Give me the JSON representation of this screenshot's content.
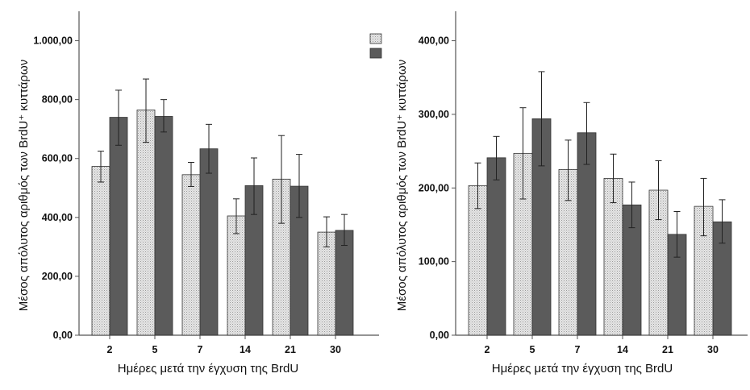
{
  "colors": {
    "series_light": "#e2e2e2",
    "series_dark": "#5b5b5b",
    "axis": "#555555",
    "error_bar": "#222222"
  },
  "legend": {
    "placement": "top-right",
    "entries": [
      {
        "swatch": "light-dotted"
      },
      {
        "swatch": "dark-solid"
      }
    ]
  },
  "chart_data": [
    {
      "type": "bar",
      "xlabel": "Ημέρες μετά την έγχυση της BrdU",
      "ylabel": "Μέσος απόλυτος αριθμός των BrdU⁺ κυττάρων",
      "categories": [
        "2",
        "5",
        "7",
        "14",
        "21",
        "30"
      ],
      "ylim": [
        0,
        1100
      ],
      "yticks": [
        0,
        200,
        400,
        600,
        800,
        1000
      ],
      "ytick_labels": [
        "0,00",
        "200,00",
        "400,00",
        "600,00",
        "800,00",
        "1.000,00"
      ],
      "grid": false,
      "series": [
        {
          "style": "light",
          "values": [
            573,
            765,
            545,
            405,
            530,
            350
          ],
          "err_low": [
            520,
            655,
            505,
            345,
            380,
            300
          ],
          "err_high": [
            625,
            870,
            587,
            463,
            678,
            402
          ]
        },
        {
          "style": "dark",
          "values": [
            740,
            743,
            633,
            508,
            506,
            356
          ],
          "err_low": [
            645,
            690,
            550,
            410,
            400,
            305
          ],
          "err_high": [
            832,
            800,
            716,
            602,
            614,
            410
          ]
        }
      ]
    },
    {
      "type": "bar",
      "xlabel": "Ημέρες μετά την έγχυση της BrdU",
      "ylabel": "Μέσος απόλυτος αριθμός των BrdU⁺ κυττάρων",
      "categories": [
        "2",
        "5",
        "7",
        "14",
        "21",
        "30"
      ],
      "ylim": [
        0,
        440
      ],
      "yticks": [
        0,
        100,
        200,
        300,
        400
      ],
      "ytick_labels": [
        "0,00",
        "100,00",
        "200,00",
        "300,00",
        "400,00"
      ],
      "grid": false,
      "series": [
        {
          "style": "light",
          "values": [
            203,
            247,
            225,
            213,
            197,
            175
          ],
          "err_low": [
            172,
            185,
            183,
            180,
            157,
            135
          ],
          "err_high": [
            234,
            309,
            265,
            246,
            237,
            213
          ]
        },
        {
          "style": "dark",
          "values": [
            241,
            294,
            275,
            177,
            137,
            154
          ],
          "err_low": [
            211,
            230,
            232,
            146,
            106,
            125
          ],
          "err_high": [
            270,
            358,
            316,
            208,
            168,
            184
          ]
        }
      ]
    }
  ]
}
